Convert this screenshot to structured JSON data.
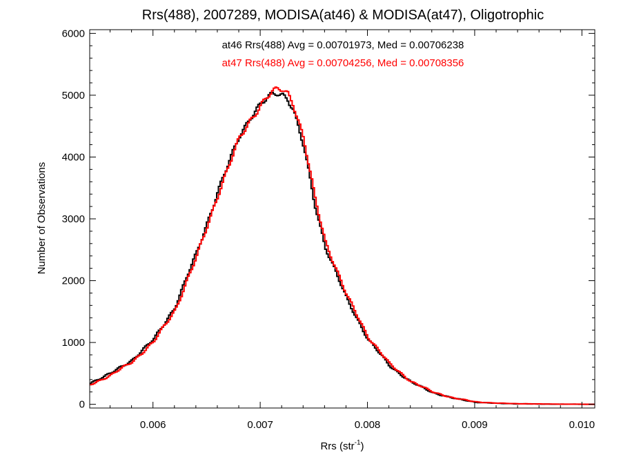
{
  "chart_data": {
    "type": "line",
    "step": true,
    "title": "Rrs(488), 2007289, MODISA(at46) & MODISA(at47), Oligotrophic",
    "xlabel": "Rrs (str",
    "xlabel_sup": "-1",
    "xlabel_suffix": ")",
    "ylabel": "Number of Observations",
    "xlim": [
      0.00541,
      0.01012
    ],
    "ylim": [
      -60,
      6060
    ],
    "x_ticks": [
      0.006,
      0.007,
      0.008,
      0.009,
      0.01
    ],
    "x_tick_labels": [
      "0.006",
      "0.007",
      "0.008",
      "0.009",
      "0.010"
    ],
    "y_ticks": [
      0,
      1000,
      2000,
      3000,
      4000,
      5000,
      6000
    ],
    "y_tick_labels": [
      "0",
      "1000",
      "2000",
      "3000",
      "4000",
      "5000",
      "6000"
    ],
    "grid": false,
    "annotations": [
      {
        "text": "at46 Rrs(488) Avg = 0.00701973, Med = 0.00706238",
        "color": "#000000"
      },
      {
        "text": "at47 Rrs(488) Avg = 0.00704256, Med = 0.00708356",
        "color": "#ff0000"
      }
    ],
    "series": [
      {
        "color": "#000000",
        "x": [
          0.00541,
          0.0056,
          0.0058,
          0.006,
          0.0062,
          0.0064,
          0.0066,
          0.0068,
          0.0069,
          0.007,
          0.0071,
          0.00715,
          0.0072,
          0.00725,
          0.0073,
          0.0074,
          0.0075,
          0.0076,
          0.0078,
          0.008,
          0.0082,
          0.0084,
          0.0086,
          0.0088,
          0.009,
          0.0092,
          0.0094,
          0.0096,
          0.0098,
          0.01012
        ],
        "y": [
          350,
          500,
          720,
          1050,
          1580,
          2450,
          3450,
          4350,
          4650,
          4850,
          5000,
          5040,
          5020,
          4950,
          4770,
          4150,
          3250,
          2550,
          1700,
          1050,
          620,
          360,
          190,
          95,
          35,
          15,
          8,
          4,
          2,
          0
        ]
      },
      {
        "color": "#ff0000",
        "x": [
          0.00541,
          0.0056,
          0.0058,
          0.006,
          0.0062,
          0.0064,
          0.0066,
          0.0068,
          0.0069,
          0.007,
          0.0071,
          0.00715,
          0.0072,
          0.00725,
          0.0073,
          0.0074,
          0.0075,
          0.0076,
          0.0078,
          0.008,
          0.0082,
          0.0084,
          0.0086,
          0.0088,
          0.009,
          0.0092,
          0.0094,
          0.0096,
          0.0098,
          0.01012
        ],
        "y": [
          320,
          470,
          690,
          1010,
          1530,
          2380,
          3400,
          4300,
          4600,
          4850,
          5040,
          5080,
          5100,
          5040,
          4880,
          4280,
          3360,
          2640,
          1760,
          1090,
          650,
          370,
          200,
          100,
          40,
          18,
          10,
          5,
          3,
          0
        ]
      }
    ]
  }
}
